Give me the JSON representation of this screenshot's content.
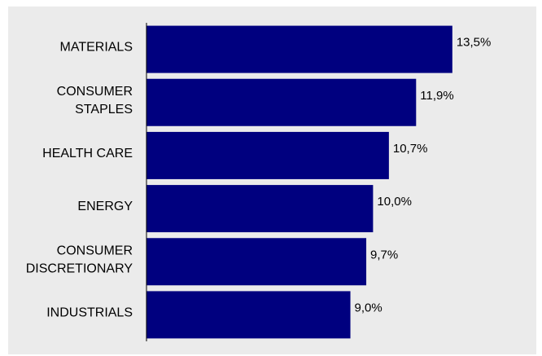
{
  "chart_data": {
    "type": "bar",
    "orientation": "horizontal",
    "categories": [
      "MATERIALS",
      "CONSUMER STAPLES",
      "HEALTH CARE",
      "ENERGY",
      "CONSUMER DISCRETIONARY",
      "INDUSTRIALS"
    ],
    "category_lines": [
      [
        "MATERIALS"
      ],
      [
        "CONSUMER",
        "STAPLES"
      ],
      [
        "HEALTH CARE"
      ],
      [
        "ENERGY"
      ],
      [
        "CONSUMER",
        "DISCRETIONARY"
      ],
      [
        "INDUSTRIALS"
      ]
    ],
    "values": [
      13.5,
      11.9,
      10.7,
      10.0,
      9.7,
      9.0
    ],
    "value_labels": [
      "13,5%",
      "11,9%",
      "10,7%",
      "10,0%",
      "9,7%",
      "9,0%"
    ],
    "xlim": [
      0,
      16.2
    ],
    "grid": false,
    "colors": {
      "bar": "#00007f",
      "background": "#ebebeb",
      "axis": "#000000"
    }
  }
}
